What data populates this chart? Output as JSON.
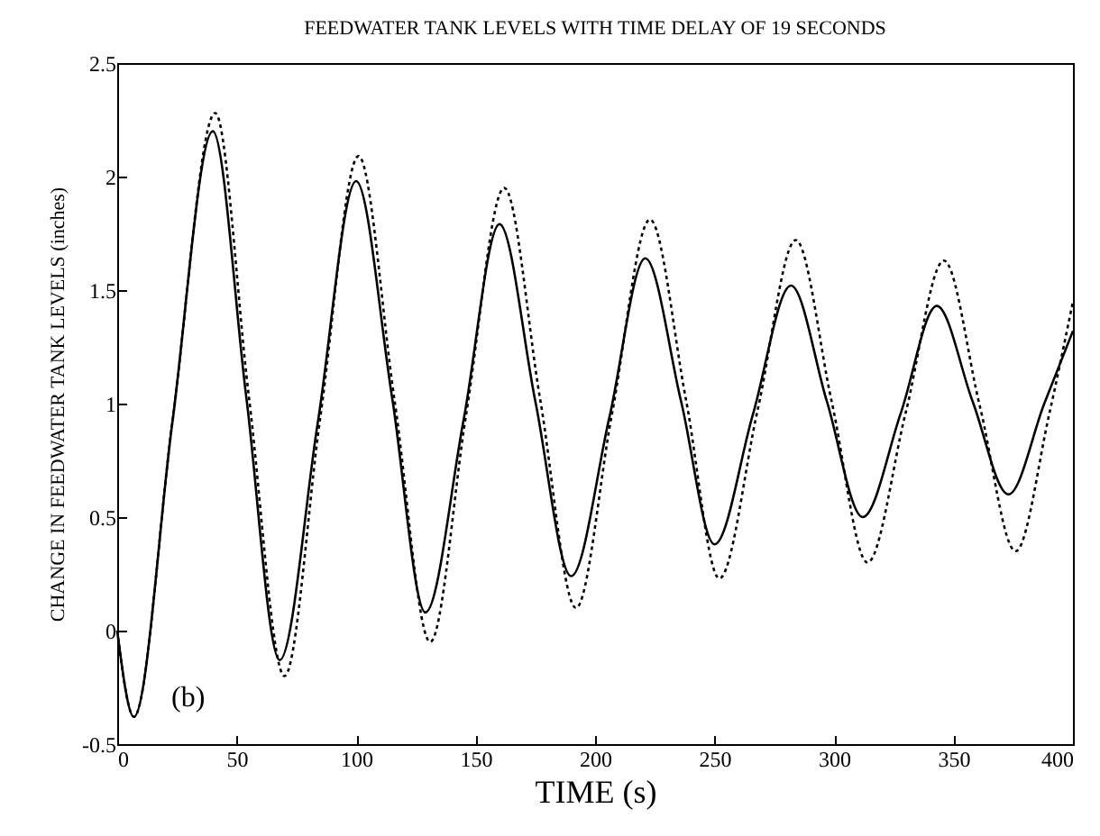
{
  "chart_data": {
    "type": "line",
    "title": "FEEDWATER TANK LEVELS WITH TIME DELAY OF 19 SECONDS",
    "xlabel": "TIME (s)",
    "ylabel": "CHANGE IN FEEDWATER TANK LEVELS (inches)",
    "annotations": [
      "(b)"
    ],
    "xlim": [
      0,
      400
    ],
    "xticks": [
      0,
      50,
      100,
      150,
      200,
      250,
      300,
      350,
      400
    ],
    "ylim": [
      -0.5,
      2.5
    ],
    "yticks": [
      -0.5,
      0,
      0.5,
      1,
      1.5,
      2,
      2.5
    ],
    "grid": false,
    "marker": "none",
    "series": [
      {
        "color": "#000000",
        "line_style": "solid",
        "x": [
          0,
          7,
          23,
          40,
          54,
          68,
          84,
          100,
          115,
          129,
          145,
          160,
          175,
          190,
          206,
          221,
          236,
          250,
          266,
          282,
          297,
          312,
          328,
          343,
          358,
          373,
          388,
          400
        ],
        "values": [
          0,
          -0.38,
          0.91,
          2.2,
          1.03,
          -0.13,
          0.92,
          1.98,
          1.03,
          0.08,
          0.93,
          1.79,
          1.01,
          0.24,
          0.94,
          1.64,
          1.01,
          0.38,
          0.95,
          1.52,
          1.01,
          0.5,
          0.96,
          1.43,
          1.01,
          0.6,
          1.0,
          1.32
        ]
      },
      {
        "color": "#000000",
        "line_style": "dotted",
        "x": [
          0,
          7,
          23,
          41,
          55,
          70,
          85,
          101,
          116,
          131,
          146,
          162,
          177,
          192,
          207,
          223,
          238,
          252,
          268,
          284,
          299,
          314,
          330,
          346,
          361,
          376,
          390,
          400
        ],
        "values": [
          0,
          -0.38,
          0.91,
          2.28,
          1.04,
          -0.2,
          0.94,
          2.09,
          1.02,
          -0.05,
          0.95,
          1.95,
          1.02,
          0.1,
          0.95,
          1.81,
          1.02,
          0.23,
          0.97,
          1.72,
          1.01,
          0.3,
          0.96,
          1.63,
          0.99,
          0.35,
          0.95,
          1.45
        ]
      }
    ]
  }
}
